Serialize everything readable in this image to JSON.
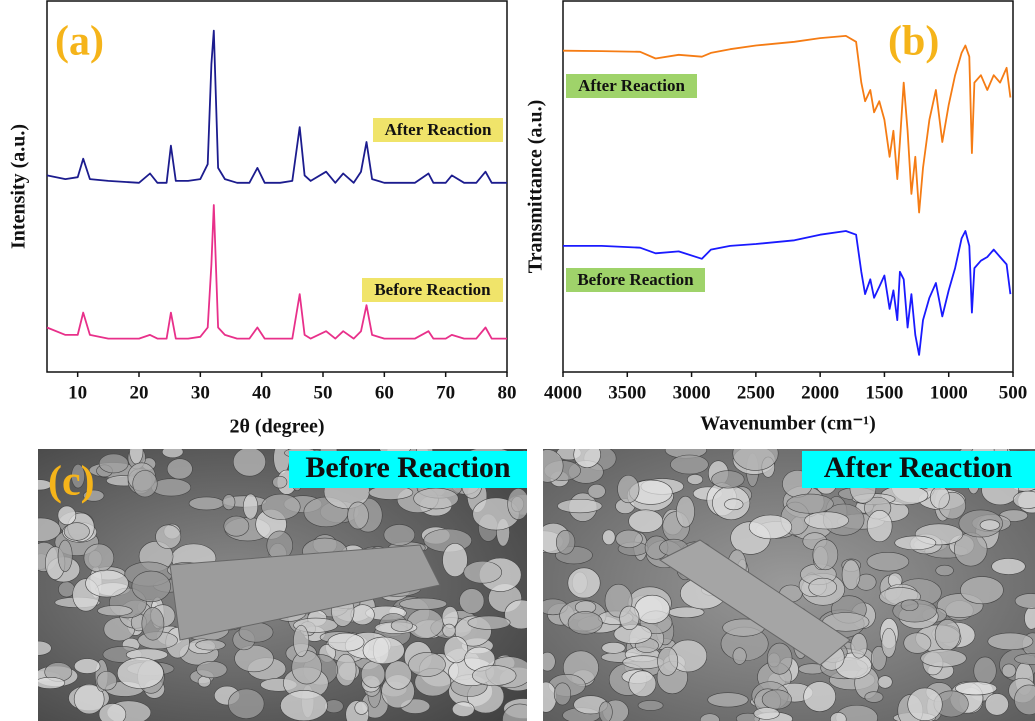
{
  "chart_data": [
    {
      "type": "line",
      "annotation": "(a)",
      "xlabel": "2θ (degree)",
      "ylabel": "Intensity (a.u.)",
      "xlim": [
        5,
        80
      ],
      "ylim": [
        0,
        100
      ],
      "xticks": [
        10,
        20,
        30,
        40,
        50,
        60,
        70,
        80
      ],
      "x": [
        5,
        8,
        10,
        10.9,
        12,
        15,
        20,
        21.8,
        23,
        24.5,
        25.2,
        26,
        28,
        30,
        31.2,
        31.8,
        32.2,
        32.9,
        34,
        36,
        38,
        39.3,
        40.5,
        43,
        45,
        46.2,
        47,
        48,
        50.5,
        52,
        53.3,
        55,
        56.2,
        57.1,
        58,
        60,
        62,
        65,
        67.2,
        68,
        70,
        71,
        73,
        75,
        76.5,
        77.5,
        80
      ],
      "series": [
        {
          "name": "After Reaction",
          "color": "#1c1c8e",
          "values": [
            53,
            52,
            52.5,
            57.5,
            52,
            51.5,
            51,
            53.5,
            51,
            51,
            61,
            51.5,
            51.5,
            52,
            56,
            83,
            92,
            55,
            52,
            51,
            51,
            55,
            51,
            51,
            51.5,
            66,
            53,
            51.5,
            54,
            51,
            53.5,
            51,
            54,
            62,
            52,
            51,
            51,
            51,
            53.5,
            51,
            51,
            53,
            51,
            51,
            54,
            51,
            51
          ]
        },
        {
          "name": "Before Reaction",
          "color": "#e8308a",
          "values": [
            12,
            10,
            10,
            16,
            10,
            9,
            9,
            10,
            9,
            9,
            16,
            9,
            9,
            9.5,
            12,
            29,
            45,
            12,
            10,
            9,
            9,
            12,
            9,
            9,
            9,
            21,
            10,
            9,
            11,
            9,
            11,
            9,
            11,
            18,
            10,
            9,
            9,
            9,
            11,
            9,
            9,
            10,
            9,
            9,
            12,
            9,
            9
          ]
        }
      ]
    },
    {
      "type": "line",
      "annotation": "(b)",
      "xlabel": "Wavenumber (cm⁻¹)",
      "ylabel": "Transmittance (a.u.)",
      "xlim": [
        4000,
        500
      ],
      "ylim": [
        0,
        100
      ],
      "xticks": [
        4000,
        3500,
        3000,
        2500,
        2000,
        1500,
        1000,
        500
      ],
      "x": [
        4000,
        3700,
        3400,
        3280,
        3100,
        2920,
        2850,
        2700,
        2500,
        2200,
        2000,
        1800,
        1720,
        1680,
        1650,
        1610,
        1580,
        1540,
        1500,
        1460,
        1430,
        1400,
        1380,
        1350,
        1320,
        1290,
        1260,
        1230,
        1200,
        1150,
        1100,
        1050,
        1000,
        950,
        900,
        870,
        840,
        820,
        800,
        750,
        700,
        650,
        600,
        550,
        520
      ],
      "series": [
        {
          "name": "After Reaction",
          "color": "#f57c14",
          "values": [
            86.6,
            86.5,
            86.3,
            84.5,
            85.5,
            85,
            86,
            87,
            88,
            89,
            90,
            90.6,
            89,
            78,
            73,
            76,
            70,
            73,
            68,
            58,
            65,
            52,
            62,
            78,
            65,
            48,
            58,
            43,
            55,
            68,
            76,
            62,
            72,
            80,
            86,
            88,
            85,
            59,
            78,
            80,
            76,
            80,
            78,
            82,
            74
          ]
        },
        {
          "name": "Before Reaction",
          "color": "#1a1aff",
          "values": [
            34,
            34,
            33.5,
            32,
            32.5,
            30.5,
            33,
            34,
            34.5,
            35.5,
            37,
            38,
            37,
            27,
            21,
            25,
            20,
            23,
            26,
            17,
            22,
            14,
            27,
            25,
            12,
            21,
            10,
            4.6,
            14,
            20,
            24,
            15,
            22,
            28,
            36,
            38,
            34,
            16,
            28,
            30,
            31,
            33,
            31,
            29,
            21
          ]
        }
      ]
    }
  ],
  "images": [
    {
      "panel": "(c)",
      "label": "Before Reaction"
    },
    {
      "label": "After Reaction"
    }
  ]
}
